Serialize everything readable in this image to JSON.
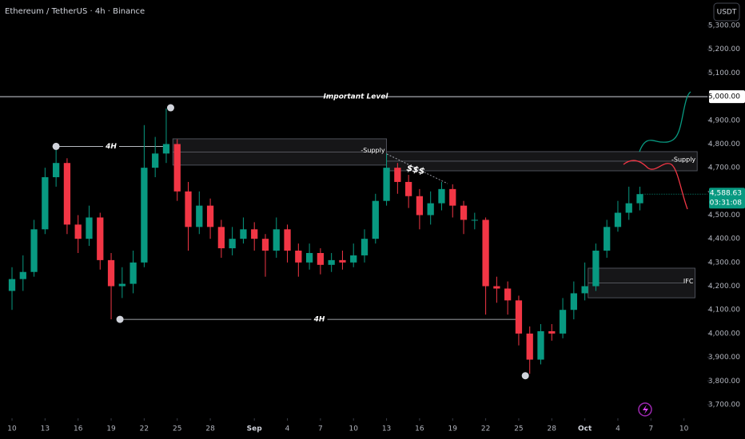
{
  "chart_data": {
    "type": "candlestick",
    "title": "Ethereum / TetherUS · 4h · Binance",
    "currency_button": "USDT",
    "up_color": "#089981",
    "down_color": "#f23645",
    "x": [
      0,
      1,
      2,
      3,
      4,
      5,
      6,
      7,
      8,
      9,
      10,
      11,
      12,
      13,
      14,
      15,
      16,
      17,
      18,
      19,
      20,
      21,
      22,
      23,
      24,
      25,
      26,
      27,
      28,
      29,
      30,
      31,
      32,
      33,
      34,
      35,
      36,
      37,
      38,
      39,
      40,
      41,
      42,
      43,
      44,
      45,
      46,
      47,
      48,
      49,
      50,
      51,
      52,
      53,
      54,
      55,
      56,
      57
    ],
    "open": [
      4180,
      4230,
      4260,
      4440,
      4660,
      4720,
      4460,
      4400,
      4490,
      4310,
      4200,
      4210,
      4300,
      4700,
      4760,
      4800,
      4600,
      4450,
      4540,
      4450,
      4360,
      4400,
      4440,
      4400,
      4350,
      4440,
      4350,
      4300,
      4340,
      4290,
      4310,
      4300,
      4330,
      4400,
      4560,
      4700,
      4640,
      4580,
      4500,
      4550,
      4610,
      4540,
      4480,
      4480,
      4200,
      4190,
      4140,
      4000,
      3890,
      4010,
      4000,
      4100,
      4170,
      4200,
      4350,
      4450,
      4510,
      4550
    ],
    "high": [
      4280,
      4330,
      4480,
      4700,
      4790,
      4740,
      4500,
      4540,
      4510,
      4340,
      4280,
      4350,
      4880,
      4830,
      4950,
      4820,
      4640,
      4600,
      4570,
      4480,
      4450,
      4490,
      4470,
      4420,
      4490,
      4460,
      4380,
      4380,
      4360,
      4340,
      4350,
      4380,
      4440,
      4590,
      4760,
      4720,
      4670,
      4610,
      4600,
      4640,
      4630,
      4560,
      4510,
      4490,
      4240,
      4220,
      4160,
      4030,
      4040,
      4040,
      4150,
      4220,
      4300,
      4380,
      4480,
      4560,
      4620,
      4620
    ],
    "low": [
      4100,
      4180,
      4240,
      4420,
      4620,
      4420,
      4340,
      4370,
      4270,
      4060,
      4150,
      4170,
      4280,
      4660,
      4720,
      4560,
      4350,
      4420,
      4400,
      4320,
      4330,
      4380,
      4350,
      4240,
      4320,
      4300,
      4240,
      4270,
      4250,
      4260,
      4270,
      4280,
      4300,
      4380,
      4540,
      4590,
      4530,
      4440,
      4460,
      4520,
      4490,
      4420,
      4440,
      4080,
      4130,
      4080,
      3950,
      3830,
      3870,
      3970,
      3980,
      4060,
      4140,
      4180,
      4320,
      4430,
      4480,
      4520
    ],
    "close": [
      4230,
      4260,
      4440,
      4660,
      4720,
      4460,
      4400,
      4490,
      4310,
      4200,
      4210,
      4300,
      4700,
      4760,
      4800,
      4600,
      4450,
      4540,
      4450,
      4360,
      4400,
      4440,
      4400,
      4350,
      4440,
      4350,
      4300,
      4340,
      4290,
      4310,
      4300,
      4330,
      4400,
      4560,
      4700,
      4640,
      4580,
      4500,
      4550,
      4610,
      4540,
      4480,
      4480,
      4200,
      4190,
      4140,
      4000,
      3890,
      4010,
      4000,
      4100,
      4170,
      4200,
      4350,
      4450,
      4510,
      4550,
      4588.63
    ],
    "xlim": [
      -1.09,
      63.13
    ],
    "xticks": [
      {
        "value": 0,
        "label": "10"
      },
      {
        "value": 3,
        "label": "13"
      },
      {
        "value": 6,
        "label": "16"
      },
      {
        "value": 9,
        "label": "19"
      },
      {
        "value": 12,
        "label": "22"
      },
      {
        "value": 15,
        "label": "25"
      },
      {
        "value": 18,
        "label": "28"
      },
      {
        "value": 22,
        "label": "Sep"
      },
      {
        "value": 25,
        "label": "4"
      },
      {
        "value": 28,
        "label": "7"
      },
      {
        "value": 31,
        "label": "10"
      },
      {
        "value": 34,
        "label": "13"
      },
      {
        "value": 37,
        "label": "16"
      },
      {
        "value": 40,
        "label": "19"
      },
      {
        "value": 43,
        "label": "22"
      },
      {
        "value": 46,
        "label": "25"
      },
      {
        "value": 49,
        "label": "28"
      },
      {
        "value": 52,
        "label": "Oct"
      },
      {
        "value": 55,
        "label": "4"
      },
      {
        "value": 58,
        "label": "7"
      },
      {
        "value": 61,
        "label": "10"
      }
    ],
    "ylim": [
      3656,
      5408
    ],
    "yticks": [
      {
        "value": 3700,
        "label": "3,700.00"
      },
      {
        "value": 3800,
        "label": "3,800.00"
      },
      {
        "value": 3900,
        "label": "3,900.00"
      },
      {
        "value": 4000,
        "label": "4,000.00"
      },
      {
        "value": 4100,
        "label": "4,100.00"
      },
      {
        "value": 4200,
        "label": "4,200.00"
      },
      {
        "value": 4300,
        "label": "4,300.00"
      },
      {
        "value": 4400,
        "label": "4,400.00"
      },
      {
        "value": 4500,
        "label": "4,500.00"
      },
      {
        "value": 4600,
        "label": "4,600.00"
      },
      {
        "value": 4700,
        "label": "4,700.00"
      },
      {
        "value": 4800,
        "label": "4,800.00"
      },
      {
        "value": 4900,
        "label": "4,900.00"
      },
      {
        "value": 5000,
        "label": "5,000.00"
      },
      {
        "value": 5100,
        "label": "5,100.00"
      },
      {
        "value": 5200,
        "label": "5,200.00"
      },
      {
        "value": 5300,
        "label": "5,300.00"
      }
    ],
    "important_level": {
      "label": "Important Level",
      "value": 5000,
      "value_label": "5,000.00"
    },
    "last_price": {
      "value": 4588.63,
      "label": "4,588.63",
      "countdown": "03:31:08"
    },
    "levels": [
      {
        "label": "4H",
        "value": 4790,
        "x": [
          4,
          14
        ]
      },
      {
        "label": "4H",
        "value": 4060,
        "x": [
          9.8,
          46
        ]
      }
    ],
    "zones": [
      {
        "label": "-Supply",
        "x": [
          14.6,
          34
        ],
        "y": [
          4711,
          4822
        ]
      },
      {
        "label": "-Supply",
        "x": [
          34,
          62.2
        ],
        "y": [
          4687,
          4768
        ]
      },
      {
        "label": "IFC",
        "x": [
          52.3,
          62
        ],
        "y": [
          4151,
          4276
        ]
      }
    ],
    "pivots": [
      {
        "x": 4,
        "value": 4790
      },
      {
        "x": 14.4,
        "value": 4953
      },
      {
        "x": 9.8,
        "value": 4060
      },
      {
        "x": 46.6,
        "value": 3822
      }
    ],
    "liquidity_label": "$$$"
  }
}
